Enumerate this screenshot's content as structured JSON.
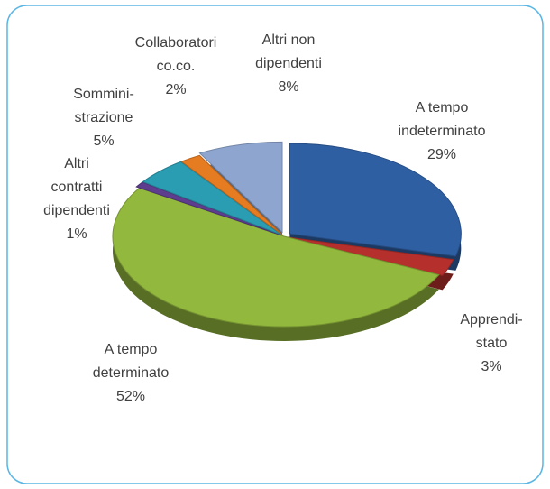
{
  "chart_data": {
    "type": "pie",
    "categories": [
      [
        "A tempo",
        "indeterminato"
      ],
      [
        "Apprendi-",
        "stato"
      ],
      [
        "A tempo",
        "determinato"
      ],
      [
        "Altri",
        "contratti",
        "dipendenti"
      ],
      [
        "Sommini-",
        "strazione"
      ],
      [
        "Collaboratori",
        "co.co."
      ],
      [
        "Altri non",
        "dipendenti"
      ]
    ],
    "values": [
      29,
      3,
      52,
      1,
      5,
      2,
      8
    ],
    "value_labels": [
      "29%",
      "3%",
      "52%",
      "1%",
      "5%",
      "2%",
      "8%"
    ],
    "colors": [
      "#2f5fa3",
      "#b5302c",
      "#92b83d",
      "#5e3c8e",
      "#2a9db3",
      "#e67c22",
      "#8ea6cf"
    ]
  }
}
